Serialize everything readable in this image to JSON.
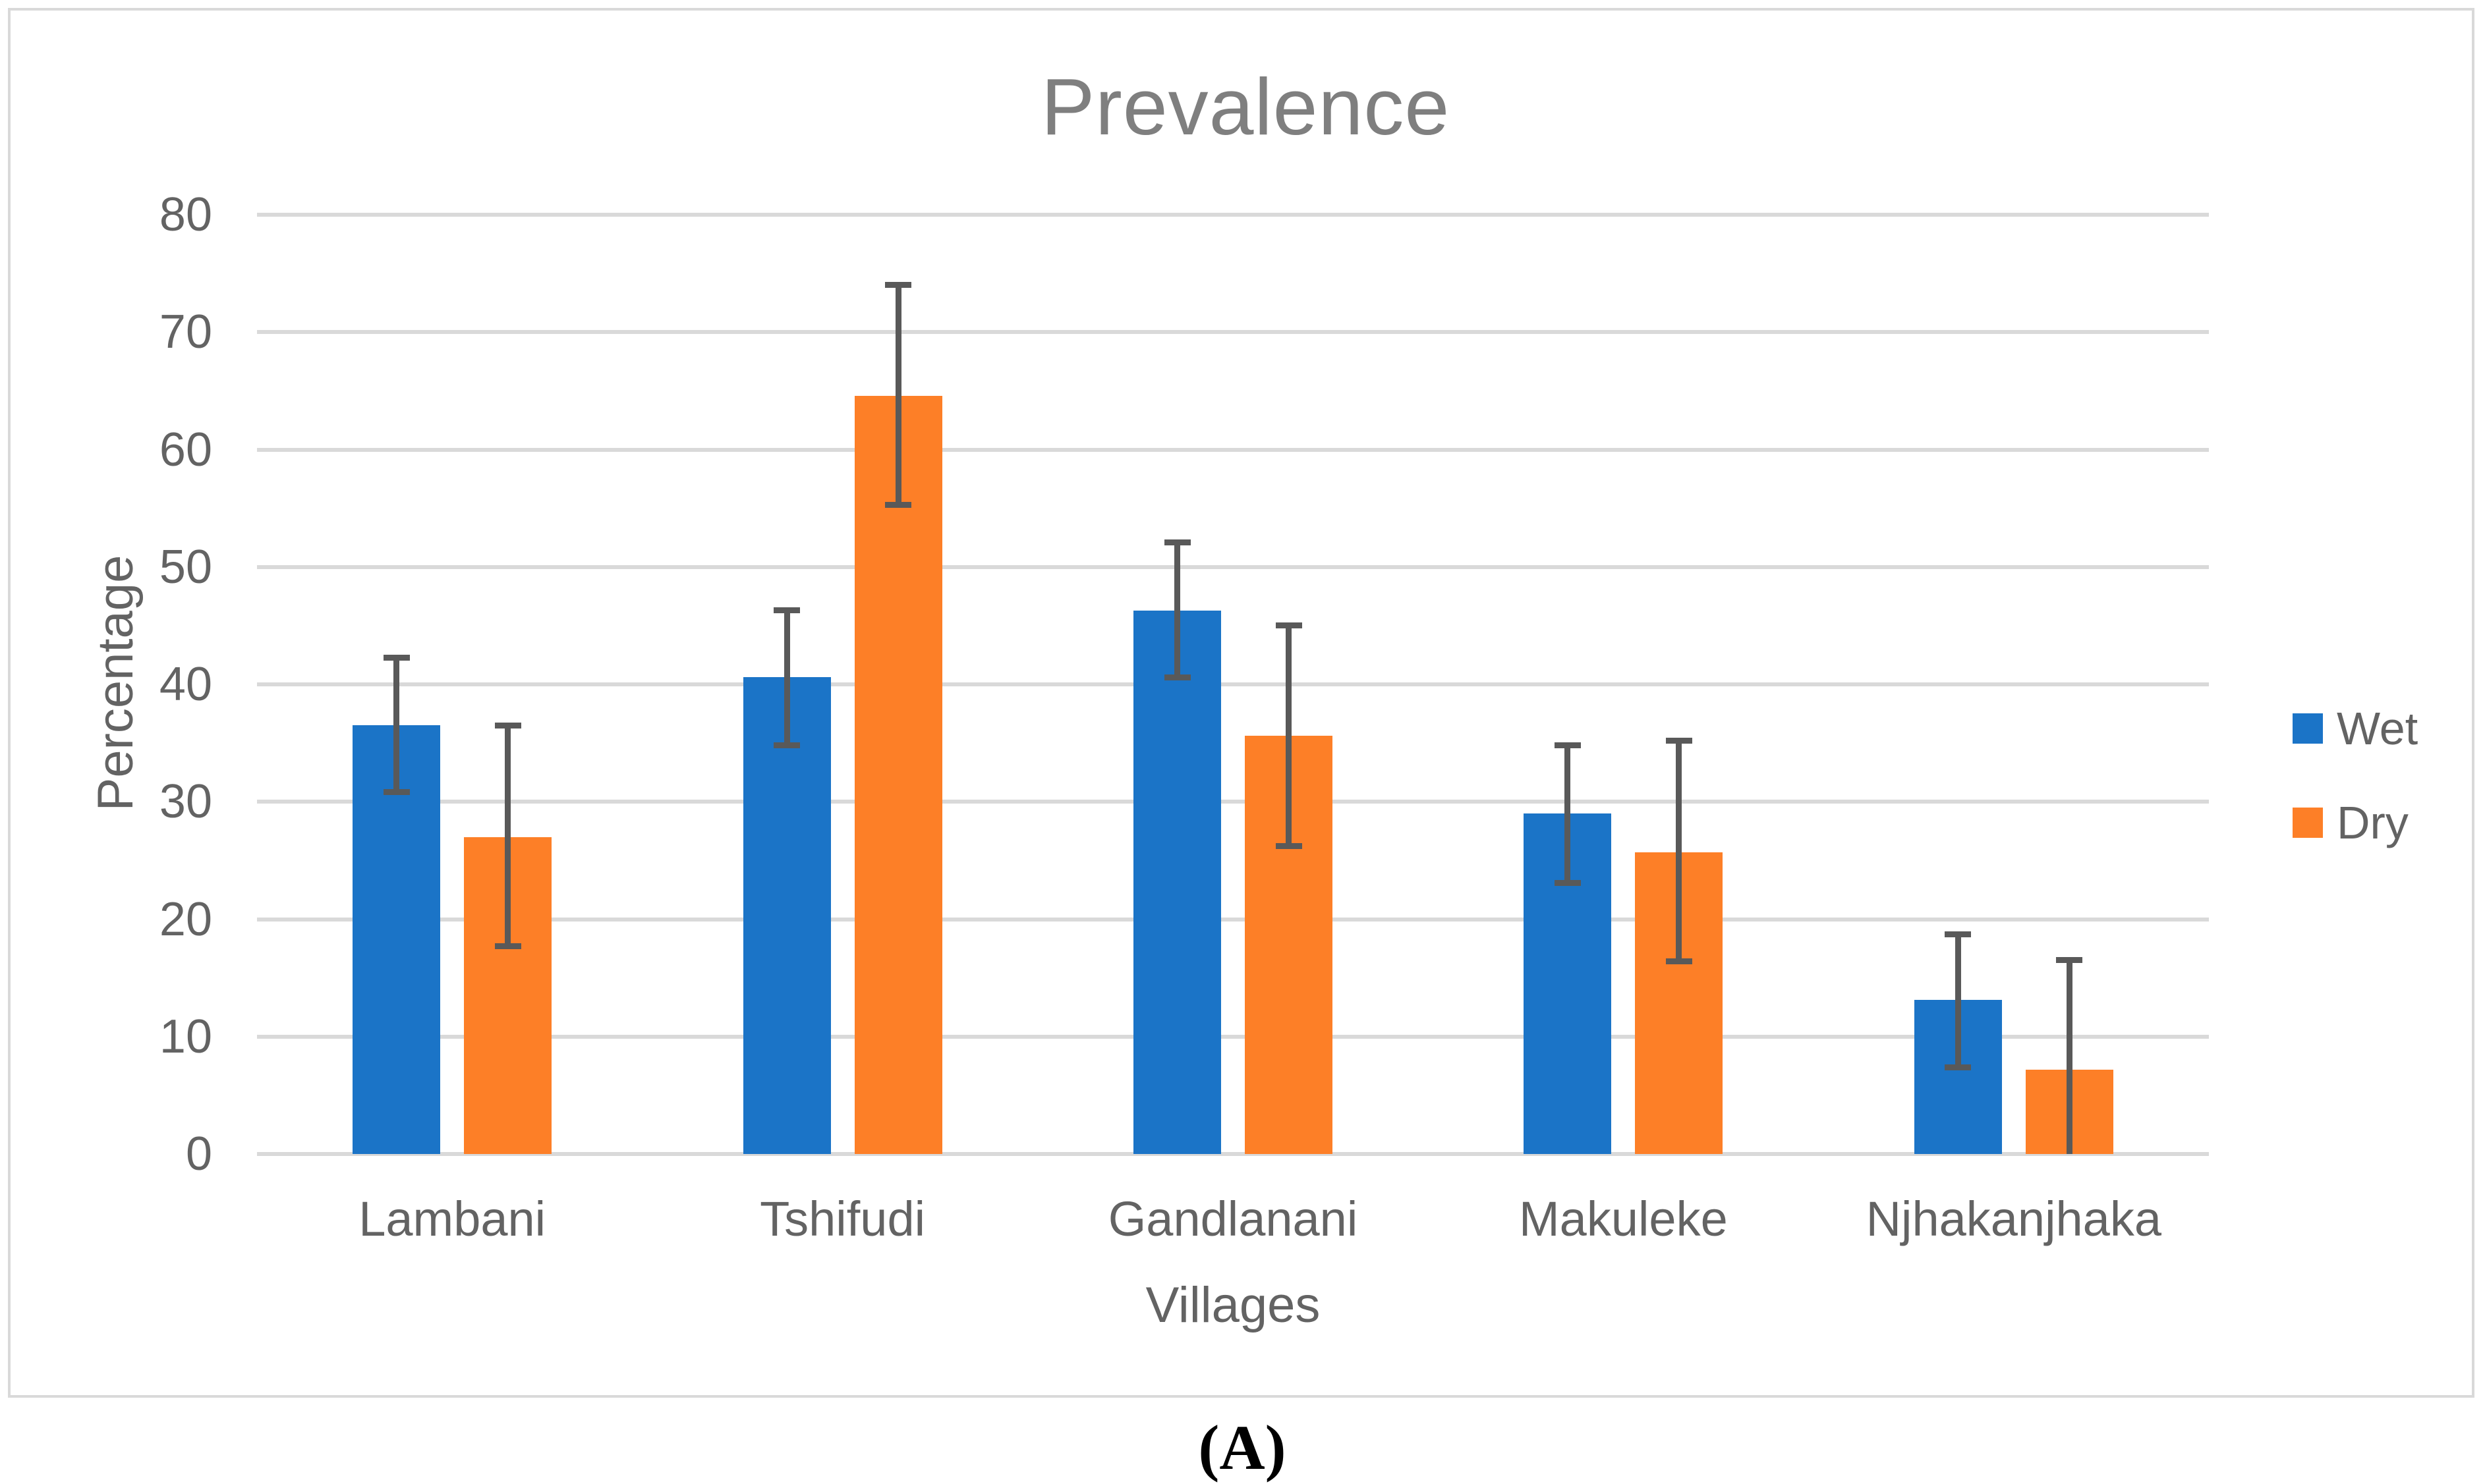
{
  "figure": {
    "title": "Prevalence",
    "x_axis_title": "Villages",
    "y_axis_title": "Percentage",
    "caption": "(A)"
  },
  "legend": {
    "position": "right",
    "items": [
      {
        "label": "Wet",
        "color": "#1B74C7"
      },
      {
        "label": "Dry",
        "color": "#FD7F27"
      }
    ]
  },
  "chart_data": {
    "type": "bar",
    "title": "Prevalence",
    "xlabel": "Villages",
    "ylabel": "Percentage",
    "ylim": [
      0,
      80
    ],
    "yticks": [
      0,
      10,
      20,
      30,
      40,
      50,
      60,
      70,
      80
    ],
    "grid": true,
    "gridline_color": "#D9D9D9",
    "error_bar_color": "#595959",
    "legend_position": "right",
    "categories": [
      "Lambani",
      "Tshifudi",
      "Gandlanani",
      "Makuleke",
      "Njhakanjhaka"
    ],
    "series": [
      {
        "name": "Wet",
        "color": "#1B74C7",
        "values": [
          36.5,
          40.6,
          46.3,
          29.0,
          13.1
        ],
        "error_low": [
          30.8,
          34.8,
          40.6,
          23.1,
          7.4
        ],
        "error_high": [
          42.3,
          46.3,
          52.1,
          34.8,
          18.7
        ]
      },
      {
        "name": "Dry",
        "color": "#FD7F27",
        "values": [
          27.0,
          64.6,
          35.6,
          25.7,
          7.2
        ],
        "error_low": [
          17.7,
          55.3,
          26.2,
          16.4,
          0
        ],
        "error_high": [
          36.5,
          74.0,
          45.0,
          35.2,
          16.5
        ]
      }
    ]
  }
}
